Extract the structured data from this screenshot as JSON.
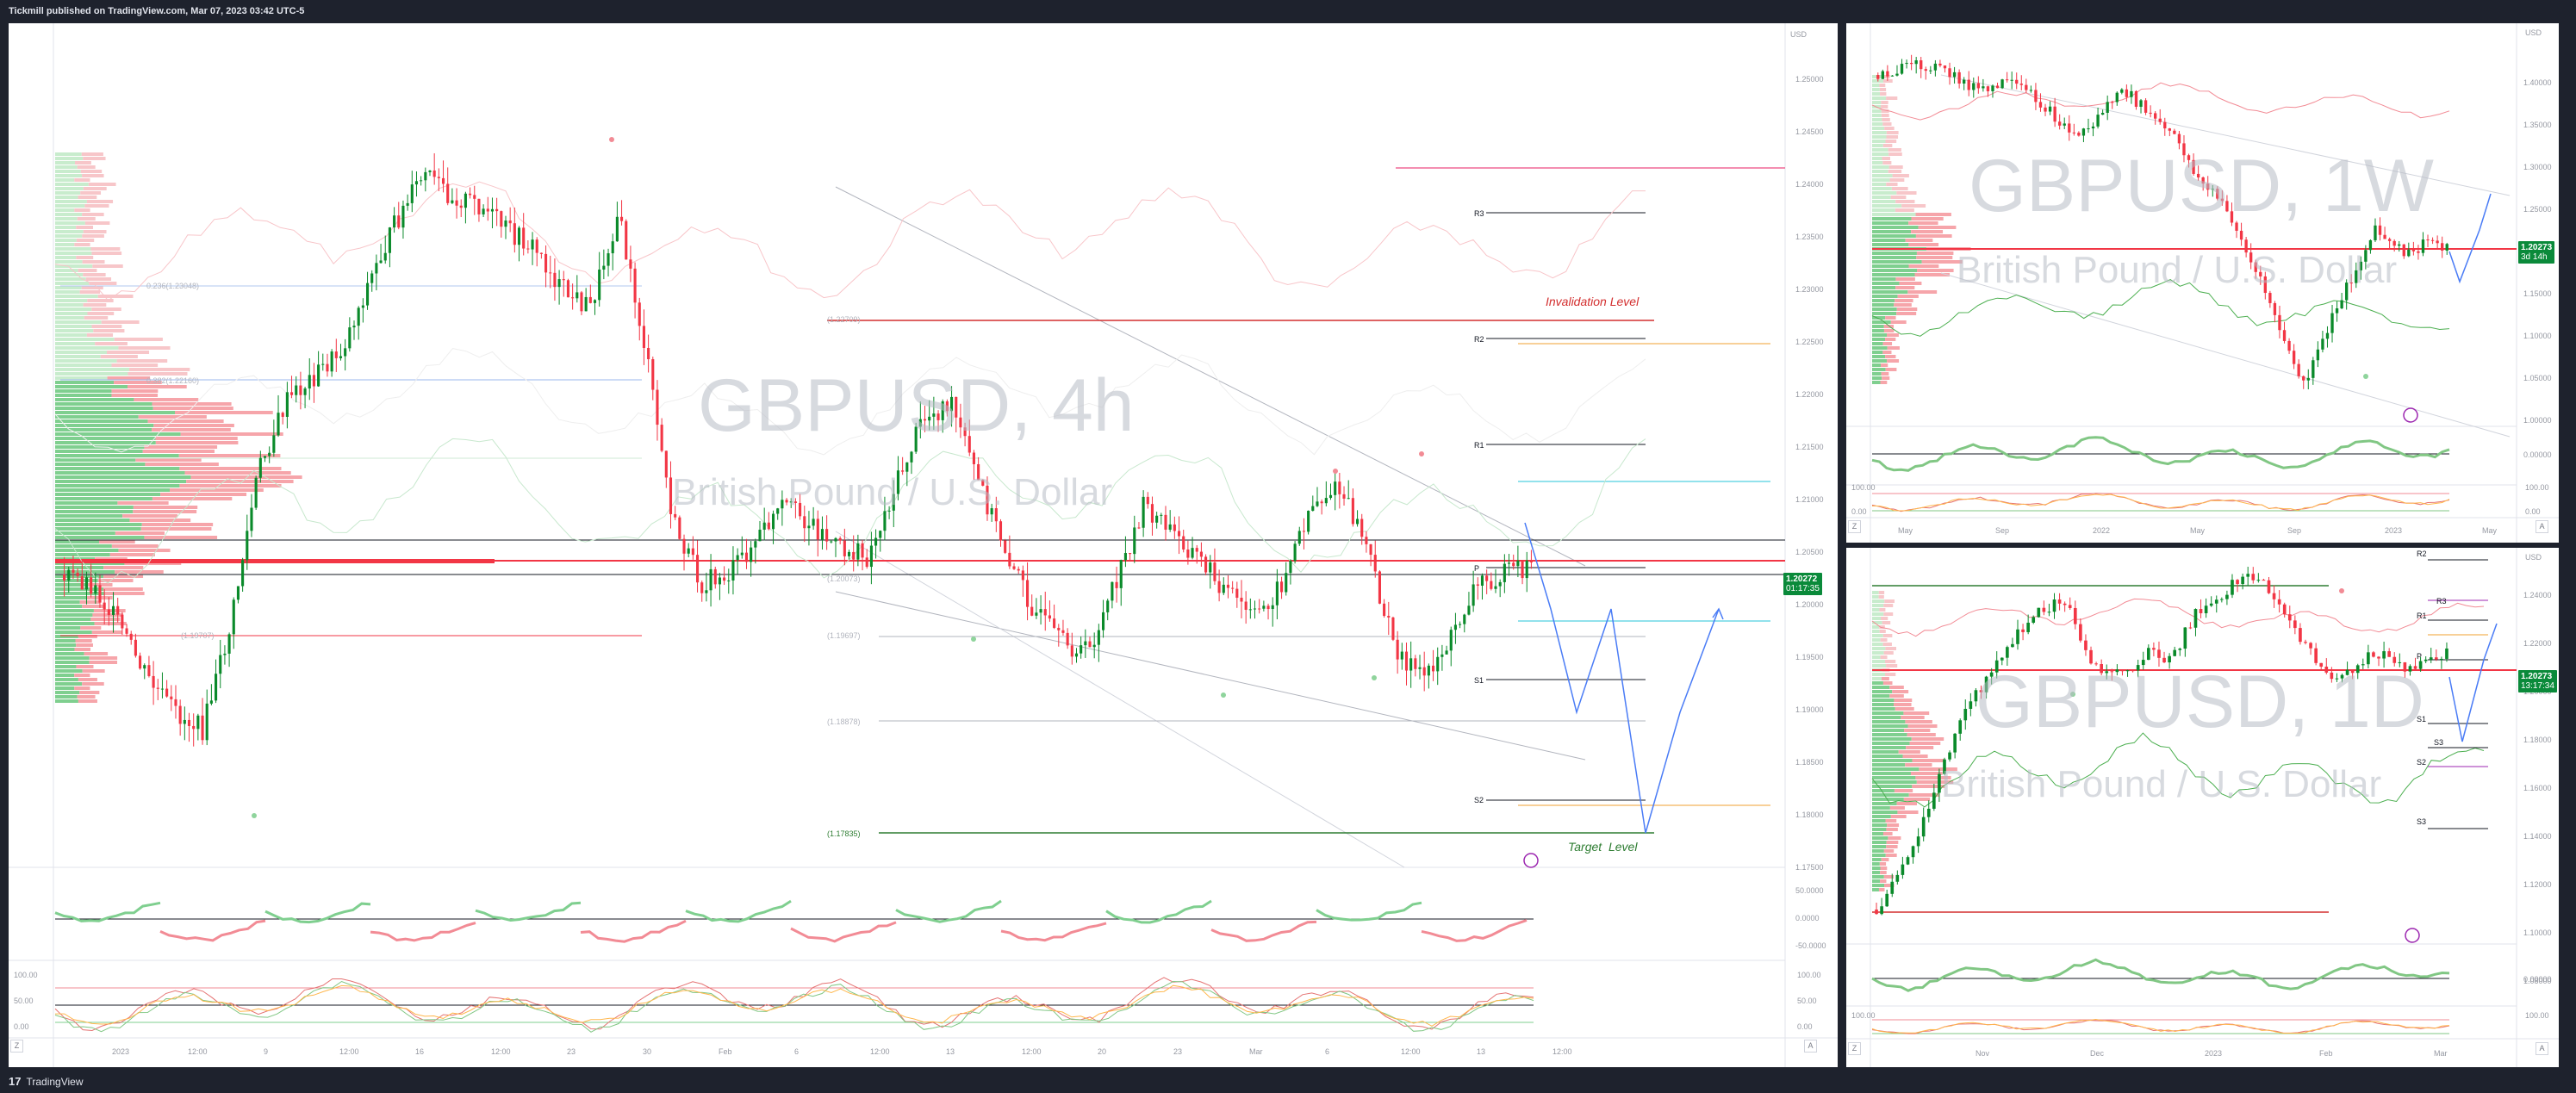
{
  "header": {
    "published": "Tickmill published on TradingView.com, Mar 07, 2023 03:42 UTC-5"
  },
  "footer": {
    "brand_logo": "17",
    "brand_name": "TradingView"
  },
  "main_chart": {
    "watermark_symbol": "GBPUSD, 4h",
    "watermark_name": "British Pound / U.S. Dollar",
    "currency": "USD",
    "price_box": {
      "price": "1.20272",
      "countdown": "01:17:35"
    },
    "y_ticks": [
      "1.25000",
      "1.24500",
      "1.24000",
      "1.23500",
      "1.23000",
      "1.22500",
      "1.22000",
      "1.21500",
      "1.21000",
      "1.20500",
      "1.20000",
      "1.19500",
      "1.19000",
      "1.18500",
      "1.18000",
      "1.17500"
    ],
    "x_ticks": [
      "2023",
      "12:00",
      "9",
      "12:00",
      "16",
      "12:00",
      "23",
      "30",
      "Feb",
      "6",
      "12:00",
      "13",
      "12:00",
      "20",
      "23",
      "Mar",
      "6",
      "12:00",
      "13",
      "12:00"
    ],
    "pivots": {
      "r3": "R3",
      "r2": "R2",
      "r1": "R1",
      "p": "P",
      "s1": "S1",
      "s2": "S2"
    },
    "levels": {
      "l1": "(1.22709)",
      "l2": "(1.20073)",
      "l3": "(1.19697)",
      "l4": "(1.18878)",
      "l5": "(1.17835)",
      "l6": "0.236(1.23048)",
      "l7": "0.382(1.22160)",
      "l8": "(1.19707)"
    },
    "annotations": {
      "invalidation": "Invalidation Level",
      "target": "Target  Level"
    },
    "osc1_ticks": [
      "50.0000",
      "0.0000",
      "-50.0000"
    ],
    "osc2_ticks": [
      "100.00",
      "50.00",
      "0.00"
    ],
    "osc2_left_ticks": [
      "100.00",
      "50.00",
      "0.00"
    ],
    "corner_left": "Z",
    "corner_right": "A"
  },
  "weekly_chart": {
    "watermark_symbol": "GBPUSD, 1W",
    "watermark_name": "British Pound / U.S. Dollar",
    "currency": "USD",
    "price_box": {
      "price": "1.20273",
      "countdown": "3d 14h"
    },
    "y_ticks": [
      "1.40000",
      "1.35000",
      "1.30000",
      "1.25000",
      "1.20000",
      "1.15000",
      "1.10000",
      "1.05000",
      "1.00000"
    ],
    "x_ticks": [
      "May",
      "Sep",
      "2022",
      "May",
      "Sep",
      "2023",
      "May"
    ],
    "osc1_ticks": [
      "0.00000"
    ],
    "osc2_ticks": [
      "100.00",
      "0.00"
    ],
    "osc2_left_ticks": [
      "100.00",
      "0.00"
    ],
    "corner_left": "Z",
    "corner_right": "A"
  },
  "daily_chart": {
    "watermark_symbol": "GBPUSD, 1D",
    "watermark_name": "British Pound / U.S. Dollar",
    "currency": "USD",
    "price_box": {
      "price": "1.20273",
      "countdown": "13:17:34"
    },
    "y_ticks": [
      "1.24000",
      "1.22000",
      "1.20000",
      "1.18000",
      "1.16000",
      "1.14000",
      "1.12000",
      "1.10000",
      "1.08000"
    ],
    "x_ticks": [
      "Nov",
      "Dec",
      "2023",
      "Feb",
      "Mar"
    ],
    "pivots": {
      "r2": "R2",
      "r3": "R3",
      "r1": "R1",
      "p": "P",
      "s1": "S1",
      "s3": "S3",
      "s2": "S2",
      "s3b": "S3"
    },
    "osc1_ticks": [
      "0.00000"
    ],
    "osc2_ticks": [
      "100.00"
    ],
    "osc2_left_ticks": [
      "100.00"
    ],
    "corner_left": "Z",
    "corner_right": "A"
  },
  "colors": {
    "bull": "#0a8a2a",
    "bear": "#f23645",
    "panel_bg": "#ffffff",
    "frame": "#1e222d",
    "projection": "#2962ff",
    "invalidation": "#d32f2f",
    "target": "#2e7d32"
  }
}
